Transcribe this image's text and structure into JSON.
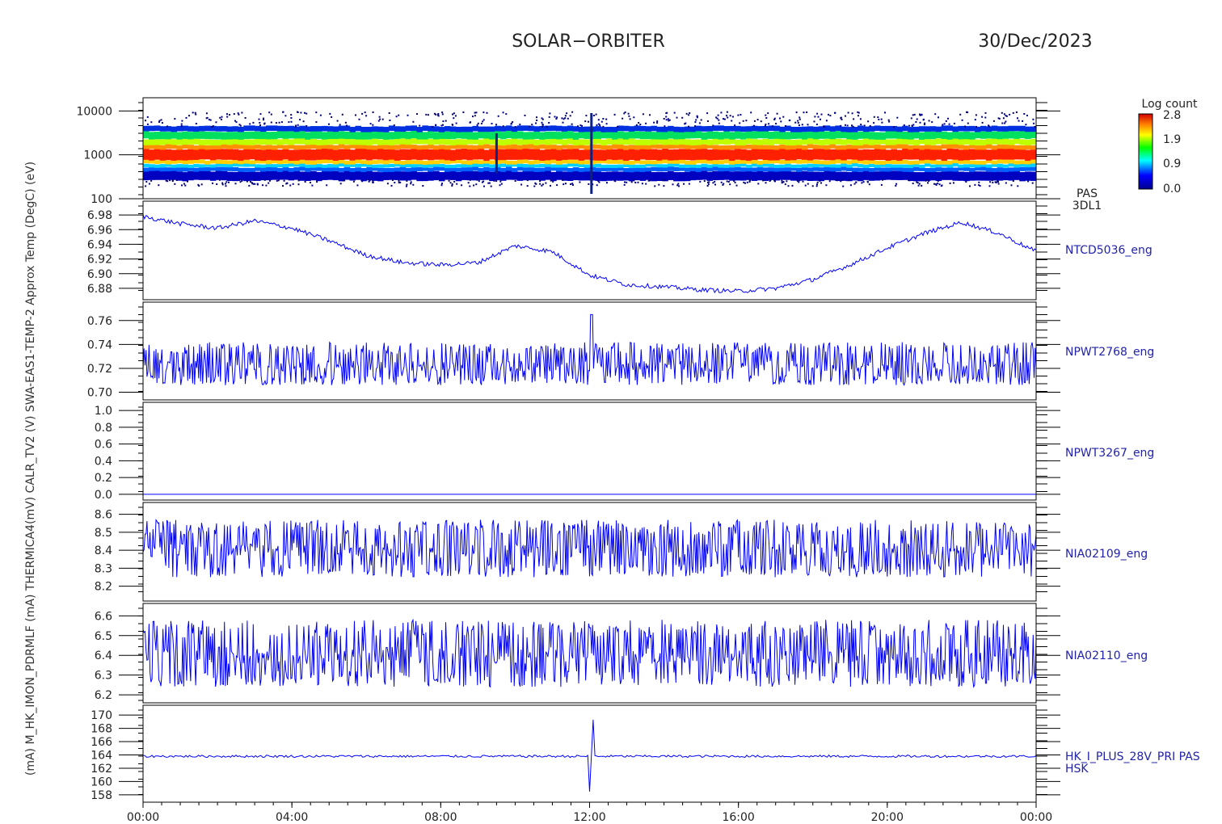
{
  "header": {
    "mission": "SOLAR−ORBITER",
    "date": "30/Dec/2023"
  },
  "colorbar": {
    "title": "Log count",
    "ticks": [
      "2.8",
      "1.9",
      "0.9",
      "0.0"
    ]
  },
  "ylabel_text": "(mA) M_HK_IMON_PDRMLF (mA) THERMICA4(mV) CALR_TV2 (V) SWA-EAS1-TEMP-2 Approx Temp (DegC) (eV)",
  "colors": {
    "trace": "#0000ff",
    "label": "#2222aa"
  },
  "chart_data": {
    "type": "line",
    "x": {
      "ticks": [
        "00:00",
        "04:00",
        "08:00",
        "12:00",
        "16:00",
        "20:00",
        "00:00"
      ],
      "range_hours": [
        0,
        24
      ]
    },
    "panels": [
      {
        "id": "pas-spectrogram",
        "type": "heatmap",
        "yscale": "log",
        "yticks": [
          "10000",
          "1000",
          "100"
        ],
        "ylim": [
          100,
          20000
        ],
        "labels": [
          "PAS",
          "3DL1"
        ],
        "clim": [
          0.0,
          2.8
        ],
        "peak_energy_ev": 1000,
        "band_ev": [
          400,
          3500
        ]
      },
      {
        "id": "ntcd5036",
        "type": "line",
        "yticks": [
          "6.98",
          "6.96",
          "6.94",
          "6.92",
          "6.90",
          "6.88"
        ],
        "ylim": [
          6.87,
          6.99
        ],
        "labels": [
          "NTCD5036_eng"
        ],
        "x_hours": [
          0,
          1,
          2,
          3,
          4,
          5,
          6,
          7,
          8,
          9,
          10,
          11,
          12,
          13,
          14,
          15,
          16,
          17,
          18,
          19,
          20,
          21,
          22,
          23,
          24
        ],
        "values": [
          6.978,
          6.968,
          6.962,
          6.972,
          6.962,
          6.945,
          6.925,
          6.915,
          6.912,
          6.915,
          6.938,
          6.93,
          6.898,
          6.885,
          6.882,
          6.878,
          6.876,
          6.88,
          6.892,
          6.912,
          6.935,
          6.955,
          6.97,
          6.955,
          6.93
        ]
      },
      {
        "id": "npwt2768",
        "type": "noise",
        "yticks": [
          "0.76",
          "0.74",
          "0.72",
          "0.70"
        ],
        "ylim": [
          0.697,
          0.77
        ],
        "labels": [
          "NPWT2768_eng"
        ],
        "mean": 0.722,
        "min": 0.706,
        "max": 0.742,
        "spike": 0.765
      },
      {
        "id": "npwt3267",
        "type": "line",
        "yticks": [
          "1.0",
          "0.8",
          "0.6",
          "0.4",
          "0.2",
          "0.0"
        ],
        "ylim": [
          -0.02,
          1.02
        ],
        "labels": [
          "NPWT3267_eng"
        ],
        "constant": 0.0
      },
      {
        "id": "nia02109",
        "type": "noise",
        "yticks": [
          "8.6",
          "8.5",
          "8.4",
          "8.3",
          "8.2"
        ],
        "ylim": [
          8.14,
          8.63
        ],
        "labels": [
          "NIA02109_eng"
        ],
        "mean": 8.4,
        "min": 8.25,
        "max": 8.57
      },
      {
        "id": "nia02110",
        "type": "noise",
        "yticks": [
          "6.6",
          "6.5",
          "6.4",
          "6.3",
          "6.2"
        ],
        "ylim": [
          6.18,
          6.63
        ],
        "labels": [
          "NIA02110_eng"
        ],
        "mean": 6.4,
        "min": 6.24,
        "max": 6.58
      },
      {
        "id": "hk-i-plus-28v",
        "type": "line",
        "yticks": [
          "170",
          "168",
          "166",
          "164",
          "162",
          "160",
          "158"
        ],
        "ylim": [
          157.5,
          170.5
        ],
        "labels": [
          "HK_I_PLUS_28V_PRI PAS",
          "HSK"
        ],
        "mean": 163.8,
        "spike_max": 169.3,
        "spike_min": 158.5
      }
    ]
  }
}
